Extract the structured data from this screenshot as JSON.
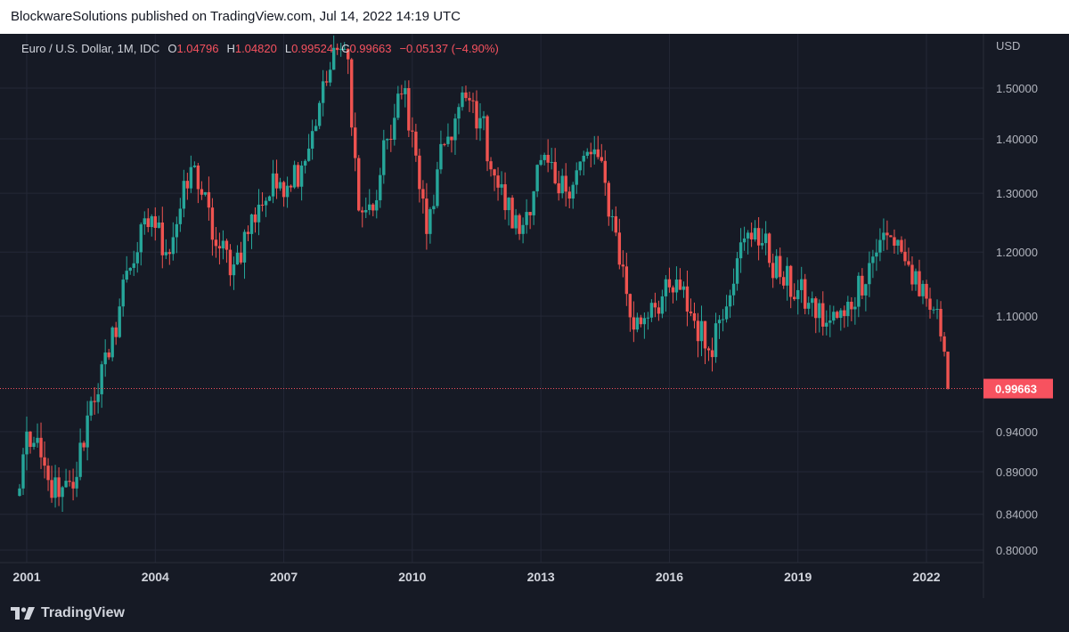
{
  "header": {
    "published_by": "BlockwareSolutions published on TradingView.com, Jul 14, 2022 14:19 UTC"
  },
  "legend": {
    "symbol": "Euro / U.S. Dollar, 1M, IDC",
    "open_label": "O",
    "open_value": "1.04796",
    "high_label": "H",
    "high_value": "1.04820",
    "low_label": "L",
    "low_value": "0.99524",
    "close_label": "C",
    "close_value": "0.99663",
    "change": "−0.05137 (−4.90%)"
  },
  "footer": {
    "brand": "TradingView"
  },
  "colors": {
    "up": "#26a69a",
    "down": "#ef5350",
    "background": "#161a25",
    "grid": "#242836",
    "last_price": "#f7525f"
  },
  "icons": [
    "tradingview-logo-icon"
  ],
  "chart_data": {
    "type": "candlestick",
    "symbol": "Euro / U.S. Dollar",
    "interval": "1M",
    "y_unit": "USD",
    "y_scale": "log",
    "y_ticks": [
      "1.50000",
      "1.40000",
      "1.30000",
      "1.20000",
      "1.10000",
      "0.94000",
      "0.89000",
      "0.84000",
      "0.80000"
    ],
    "x_ticks": [
      "2001",
      "2004",
      "2007",
      "2010",
      "2013",
      "2016",
      "2019",
      "2022"
    ],
    "last_price": "0.99663",
    "grid": true,
    "monthly_close_anchors": [
      [
        "2000-11",
        0.87
      ],
      [
        "2001-01",
        0.94
      ],
      [
        "2001-07",
        0.88
      ],
      [
        "2001-10",
        0.86
      ],
      [
        "2002-02",
        0.87
      ],
      [
        "2002-07",
        0.98
      ],
      [
        "2002-12",
        1.04
      ],
      [
        "2003-05",
        1.17
      ],
      [
        "2003-12",
        1.26
      ],
      [
        "2004-04",
        1.2
      ],
      [
        "2004-12",
        1.35
      ],
      [
        "2005-06",
        1.21
      ],
      [
        "2005-11",
        1.18
      ],
      [
        "2006-06",
        1.28
      ],
      [
        "2006-12",
        1.32
      ],
      [
        "2007-06",
        1.35
      ],
      [
        "2007-11",
        1.47
      ],
      [
        "2008-04",
        1.58
      ],
      [
        "2008-07",
        1.56
      ],
      [
        "2008-10",
        1.27
      ],
      [
        "2009-02",
        1.27
      ],
      [
        "2009-06",
        1.4
      ],
      [
        "2009-11",
        1.5
      ],
      [
        "2010-05",
        1.23
      ],
      [
        "2010-10",
        1.39
      ],
      [
        "2011-04",
        1.48
      ],
      [
        "2011-08",
        1.44
      ],
      [
        "2012-01",
        1.31
      ],
      [
        "2012-07",
        1.23
      ],
      [
        "2013-01",
        1.36
      ],
      [
        "2013-06",
        1.3
      ],
      [
        "2014-04",
        1.38
      ],
      [
        "2014-09",
        1.26
      ],
      [
        "2015-03",
        1.08
      ],
      [
        "2015-08",
        1.12
      ],
      [
        "2016-04",
        1.14
      ],
      [
        "2016-12",
        1.05
      ],
      [
        "2017-08",
        1.19
      ],
      [
        "2018-01",
        1.24
      ],
      [
        "2018-08",
        1.16
      ],
      [
        "2019-04",
        1.12
      ],
      [
        "2019-09",
        1.09
      ],
      [
        "2020-02",
        1.1
      ],
      [
        "2020-12",
        1.22
      ],
      [
        "2021-05",
        1.22
      ],
      [
        "2021-11",
        1.13
      ],
      [
        "2022-03",
        1.11
      ],
      [
        "2022-05",
        1.07
      ],
      [
        "2022-06",
        1.048
      ],
      [
        "2022-07",
        0.99663
      ]
    ]
  }
}
